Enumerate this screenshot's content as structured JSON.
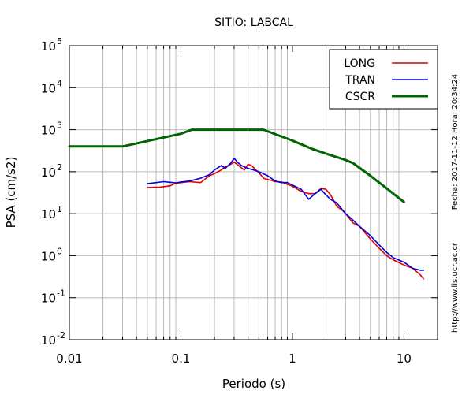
{
  "chart_data": {
    "type": "line",
    "title": "SITIO: LABCAL",
    "xlabel": "Periodo (s)",
    "ylabel": "PSA (cm/s2)",
    "x_scale": "log",
    "y_scale": "log",
    "xlim": [
      0.01,
      20
    ],
    "ylim": [
      0.01,
      100000
    ],
    "grid": true,
    "legend_position": "top-right",
    "x_ticks": [
      {
        "value": 0.01,
        "label": "0.01"
      },
      {
        "value": 0.1,
        "label": "0.1"
      },
      {
        "value": 1,
        "label": "1"
      },
      {
        "value": 10,
        "label": "10"
      }
    ],
    "y_ticks": [
      {
        "value": 0.01,
        "base": "10",
        "exp": "-2"
      },
      {
        "value": 0.1,
        "base": "10",
        "exp": "-1"
      },
      {
        "value": 1,
        "base": "10",
        "exp": "0"
      },
      {
        "value": 10,
        "base": "10",
        "exp": "1"
      },
      {
        "value": 100,
        "base": "10",
        "exp": "2"
      },
      {
        "value": 1000,
        "base": "10",
        "exp": "3"
      },
      {
        "value": 10000,
        "base": "10",
        "exp": "4"
      },
      {
        "value": 100000,
        "base": "10",
        "exp": "5"
      }
    ],
    "series": [
      {
        "name": "LONG",
        "color": "#e00000",
        "x": [
          0.05,
          0.065,
          0.08,
          0.09,
          0.1,
          0.12,
          0.15,
          0.18,
          0.2,
          0.23,
          0.25,
          0.28,
          0.3,
          0.33,
          0.37,
          0.4,
          0.43,
          0.47,
          0.5,
          0.55,
          0.6,
          0.65,
          0.7,
          0.8,
          0.9,
          1.0,
          1.2,
          1.4,
          1.6,
          1.8,
          2.0,
          2.2,
          2.5,
          2.8,
          3.0,
          3.5,
          4.0,
          5.0,
          6.0,
          7.0,
          8.0,
          10.0,
          12.0,
          14.0,
          15.0
        ],
        "y": [
          42,
          43,
          46,
          53,
          55,
          58,
          55,
          80,
          90,
          110,
          130,
          150,
          170,
          140,
          110,
          150,
          140,
          110,
          95,
          70,
          65,
          62,
          58,
          57,
          50,
          45,
          34,
          30,
          30,
          40,
          38,
          28,
          15,
          12,
          10,
          6,
          5,
          2.5,
          1.5,
          1.0,
          0.8,
          0.6,
          0.5,
          0.35,
          0.28
        ]
      },
      {
        "name": "TRAN",
        "color": "#0000dd",
        "x": [
          0.05,
          0.06,
          0.07,
          0.08,
          0.09,
          0.1,
          0.12,
          0.15,
          0.18,
          0.2,
          0.23,
          0.25,
          0.28,
          0.3,
          0.32,
          0.35,
          0.4,
          0.45,
          0.5,
          0.6,
          0.7,
          0.8,
          0.9,
          1.0,
          1.2,
          1.4,
          1.6,
          1.8,
          2.0,
          2.2,
          2.5,
          3.0,
          3.5,
          4.0,
          5.0,
          6.0,
          7.0,
          8.0,
          10.0,
          12.0,
          14.0,
          15.0
        ],
        "y": [
          52,
          55,
          58,
          56,
          54,
          57,
          60,
          70,
          85,
          110,
          140,
          120,
          160,
          210,
          170,
          140,
          120,
          110,
          100,
          80,
          60,
          55,
          55,
          48,
          38,
          22,
          30,
          38,
          28,
          22,
          18,
          10,
          7,
          5,
          3,
          1.8,
          1.2,
          0.9,
          0.7,
          0.5,
          0.45,
          0.45
        ]
      },
      {
        "name": "CSCR",
        "color": "#006400",
        "x": [
          0.01,
          0.03,
          0.1,
          0.125,
          0.55,
          1.0,
          1.5,
          2.0,
          3.0,
          3.5,
          5.0,
          7.0,
          10.0
        ],
        "y": [
          400,
          400,
          800,
          1000,
          1000,
          550,
          350,
          270,
          190,
          160,
          80,
          40,
          19
        ]
      }
    ],
    "side_text": {
      "timestamp": "Fecha: 2017-11-12  Hora: 20:34:24",
      "url": "http://www.lis.ucr.ac.cr"
    }
  }
}
